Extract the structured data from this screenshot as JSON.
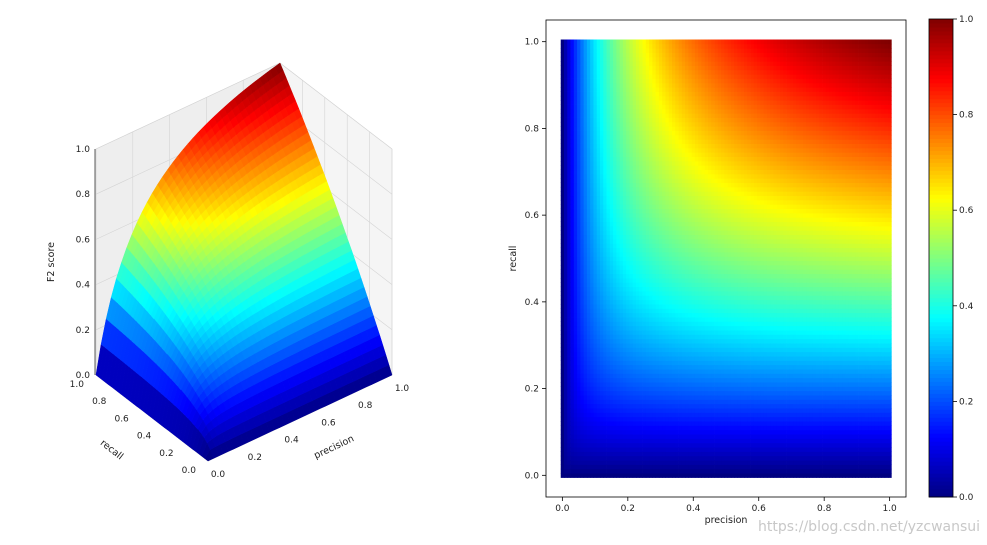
{
  "chart_data": [
    {
      "type": "surface3d",
      "function": "F2 = 5*p*r/(4*p + r)",
      "x": {
        "label": "precision",
        "range": [
          0,
          1
        ],
        "ticks": [
          "0.0",
          "0.2",
          "0.4",
          "0.6",
          "0.8",
          "1.0"
        ]
      },
      "y": {
        "label": "recall",
        "range": [
          0,
          1
        ],
        "ticks": [
          "0.0",
          "0.2",
          "0.4",
          "0.6",
          "0.8",
          "1.0"
        ]
      },
      "z": {
        "label": "F2 score",
        "range": [
          0,
          1
        ],
        "ticks": [
          "0.0",
          "0.2",
          "0.4",
          "0.6",
          "0.8",
          "1.0"
        ]
      },
      "grid": true,
      "colormap": "jet",
      "sample_values": [
        {
          "precision": 1.0,
          "recall": 1.0,
          "f2": 1.0
        },
        {
          "precision": 1.0,
          "recall": 0.5,
          "f2": 0.556
        },
        {
          "precision": 0.5,
          "recall": 1.0,
          "f2": 0.833
        },
        {
          "precision": 0.5,
          "recall": 0.5,
          "f2": 0.5
        },
        {
          "precision": 0.2,
          "recall": 1.0,
          "f2": 0.556
        },
        {
          "precision": 1.0,
          "recall": 0.2,
          "f2": 0.238
        },
        {
          "precision": 0.0,
          "recall": 0.0,
          "f2": 0.0
        }
      ]
    },
    {
      "type": "heatmap",
      "function": "F2 = 5*p*r/(4*p + r)",
      "x": {
        "label": "precision",
        "range": [
          -0.05,
          1.05
        ],
        "ticks": [
          "0.0",
          "0.2",
          "0.4",
          "0.6",
          "0.8",
          "1.0"
        ]
      },
      "y": {
        "label": "recall",
        "range": [
          -0.05,
          1.05
        ],
        "ticks": [
          "0.0",
          "0.2",
          "0.4",
          "0.6",
          "0.8",
          "1.0"
        ]
      },
      "colorbar": {
        "range": [
          0,
          1
        ],
        "ticks": [
          "0.0",
          "0.2",
          "0.4",
          "0.6",
          "0.8",
          "1.0"
        ]
      },
      "colormap": "jet"
    }
  ],
  "watermark": "https://blog.csdn.net/yzcwansui",
  "colors": {
    "jet": [
      "#00007f",
      "#0000ff",
      "#00ffff",
      "#ffff00",
      "#ff0000",
      "#7f0000"
    ]
  }
}
